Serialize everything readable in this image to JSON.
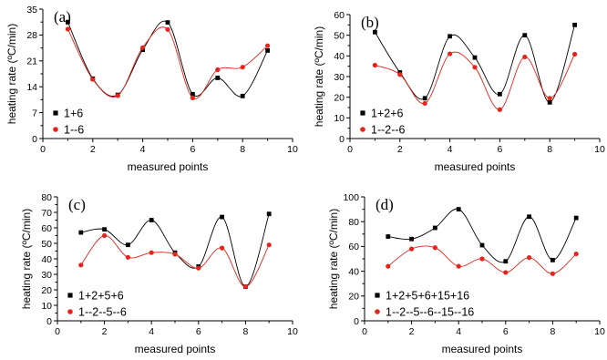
{
  "figure": {
    "x_title": "measured points",
    "y_title": "heating rate (ºC/min)"
  },
  "chart_data": [
    {
      "type": "line",
      "panel": "(a)",
      "xlabel": "measured points",
      "ylabel": "heating rate (ºC/min)",
      "xlim": [
        0,
        10
      ],
      "ylim": [
        0,
        35
      ],
      "xticks": [
        0,
        2,
        4,
        6,
        8,
        10
      ],
      "yticks": [
        0,
        7,
        14,
        21,
        28,
        35
      ],
      "x": [
        1,
        2,
        3,
        4,
        5,
        6,
        7,
        8,
        9
      ],
      "series": [
        {
          "name": "1+6",
          "color": "#000000",
          "marker": "square",
          "values": [
            31.5,
            16.2,
            11.8,
            24.0,
            31.4,
            12.0,
            16.4,
            11.5,
            23.8
          ]
        },
        {
          "name": "1--6",
          "color": "#e8231c",
          "marker": "circle",
          "values": [
            29.6,
            16.0,
            11.6,
            24.6,
            29.5,
            11.0,
            18.6,
            19.3,
            25.1
          ]
        }
      ],
      "legend": "bottom-left"
    },
    {
      "type": "line",
      "panel": "(b)",
      "xlabel": "measured points",
      "ylabel": "heating rate (ºC/min)",
      "xlim": [
        0,
        10
      ],
      "ylim": [
        0,
        60
      ],
      "xticks": [
        0,
        2,
        4,
        6,
        8,
        10
      ],
      "yticks": [
        0,
        10,
        20,
        30,
        40,
        50,
        60
      ],
      "x": [
        1,
        2,
        3,
        4,
        5,
        6,
        7,
        8,
        9
      ],
      "series": [
        {
          "name": "1+2+6",
          "color": "#000000",
          "marker": "square",
          "values": [
            51.5,
            32.0,
            19.5,
            49.5,
            39.2,
            21.5,
            50.0,
            17.5,
            55.0
          ]
        },
        {
          "name": "1--2--6",
          "color": "#e8231c",
          "marker": "circle",
          "values": [
            35.5,
            31.0,
            17.0,
            41.0,
            34.5,
            14.0,
            39.5,
            19.5,
            40.8
          ]
        }
      ],
      "legend": "bottom-left"
    },
    {
      "type": "line",
      "panel": "(c)",
      "xlabel": "measured points",
      "ylabel": "heating rate (ºC/min)",
      "xlim": [
        0,
        10
      ],
      "ylim": [
        0,
        80
      ],
      "xticks": [
        0,
        2,
        4,
        6,
        8,
        10
      ],
      "yticks": [
        0,
        10,
        20,
        30,
        40,
        50,
        60,
        70,
        80
      ],
      "x": [
        1,
        2,
        3,
        4,
        5,
        6,
        7,
        8,
        9
      ],
      "series": [
        {
          "name": "1+2+5+6",
          "color": "#000000",
          "marker": "square",
          "values": [
            57,
            59,
            49,
            65,
            44,
            35,
            67,
            22,
            69
          ]
        },
        {
          "name": "1--2--5--6",
          "color": "#e8231c",
          "marker": "circle",
          "values": [
            36,
            55,
            41,
            44,
            43,
            34,
            47,
            22,
            49
          ]
        }
      ],
      "legend": "bottom-left"
    },
    {
      "type": "line",
      "panel": "(d)",
      "xlabel": "measured points",
      "ylabel": "heating rate (ºC/min)",
      "xlim": [
        0,
        10
      ],
      "ylim": [
        0,
        100
      ],
      "xticks": [
        0,
        2,
        4,
        6,
        8,
        10
      ],
      "yticks": [
        0,
        20,
        40,
        60,
        80,
        100
      ],
      "x": [
        1,
        2,
        3,
        4,
        5,
        6,
        7,
        8,
        9
      ],
      "series": [
        {
          "name": "1+2+5+6+15+16",
          "color": "#000000",
          "marker": "square",
          "values": [
            68,
            66,
            75,
            90,
            61,
            48,
            84,
            49,
            83
          ]
        },
        {
          "name": "1--2--5--6--15--16",
          "color": "#e8231c",
          "marker": "circle",
          "values": [
            44,
            58,
            59,
            44,
            50,
            39,
            51,
            38,
            54
          ]
        }
      ],
      "legend": "bottom-left"
    }
  ]
}
